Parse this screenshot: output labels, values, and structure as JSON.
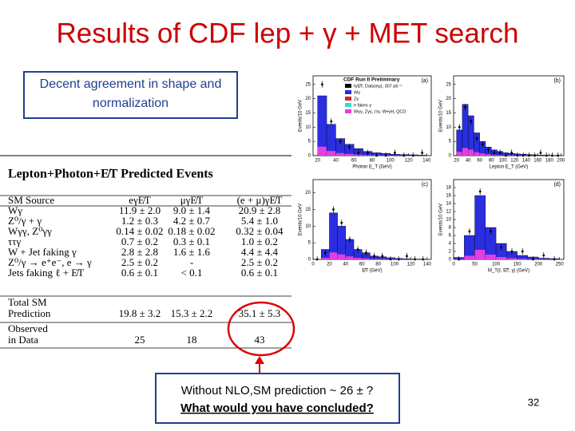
{
  "title": "Results of CDF lep + γ + MET search",
  "note": "Decent agreement in shape and normalization",
  "table": {
    "title": "Lepton+Photon+E̸T Predicted Events",
    "header": [
      "SM Source",
      "eγE̸T",
      "μγE̸T",
      "(e + μ)γE̸T"
    ],
    "rows": [
      {
        "source": [
          "Wγ"
        ],
        "values": [
          "11.9 ± 2.0",
          "9.0 ± 1.4",
          "20.9 ± 2.8"
        ]
      },
      {
        "source": [
          "Z⁰/γ + γ"
        ],
        "values": [
          "1.2 ± 0.3",
          "4.2 ± 0.7",
          "5.4 ± 1.0"
        ]
      },
      {
        "source": [
          "Wγγ, Z⁰γγ"
        ],
        "values": [
          "0.14 ± 0.02",
          "0.18 ± 0.02",
          "0.32 ± 0.04"
        ]
      },
      {
        "source": [
          "ττγ"
        ],
        "values": [
          "0.7 ± 0.2",
          "0.3 ± 0.1",
          "1.0 ± 0.2"
        ]
      },
      {
        "source": [
          "W + Jet faking γ"
        ],
        "values": [
          "2.8 ± 2.8",
          "1.6 ± 1.6",
          "4.4 ± 4.4"
        ]
      },
      {
        "source": [
          "Z⁰/γ → e⁺e⁻, e → γ"
        ],
        "values": [
          "2.5 ± 0.2",
          "-",
          "2.5 ± 0.2"
        ]
      },
      {
        "source": [
          "Jets faking ℓ + E̸T"
        ],
        "values": [
          "0.6 ± 0.1",
          "< 0.1",
          "0.6 ± 0.1"
        ]
      },
      {
        "source": [
          "Total SM",
          "Prediction"
        ],
        "values": [
          "19.8 ± 3.2",
          "15.3 ± 2.2",
          "35.1 ± 5.3"
        ]
      },
      {
        "source": [
          "Observed",
          "in Data"
        ],
        "values": [
          25,
          18,
          43
        ]
      }
    ]
  },
  "legend": {
    "header": "CDF Run II Preliminary",
    "entries": [
      "ℓγE̸T, Data(eμ), 307 pb⁻¹",
      "Wγ",
      "Zγ",
      "e fakes γ",
      "Wγγ, Zγγ, ττγ, W+jet, QCD"
    ]
  },
  "plots": [
    {
      "panel": "(a)",
      "xlabel": "Photon E_T (GeV)",
      "ylabel": "Events/10 GeV",
      "xlim": [
        15,
        145
      ],
      "xticks": [
        20,
        40,
        60,
        80,
        100,
        120,
        140
      ],
      "ylim": [
        0,
        28
      ],
      "yticks": [
        0,
        5,
        10,
        15,
        20,
        25
      ],
      "bins": [
        20,
        30,
        40,
        50,
        60,
        70,
        80,
        90,
        100,
        110,
        120,
        130,
        140
      ],
      "prediction": [
        21,
        11,
        6,
        4,
        2.5,
        1.5,
        1,
        0.8,
        0.5,
        0.4,
        0.3,
        0.2
      ],
      "data": [
        25,
        12,
        5,
        3,
        1,
        1,
        0,
        0,
        1,
        0,
        0,
        1
      ]
    },
    {
      "panel": "(b)",
      "xlabel": "Lepton E_T (GeV)",
      "ylabel": "Events/10 GeV",
      "xlim": [
        15,
        205
      ],
      "xticks": [
        20,
        40,
        60,
        80,
        100,
        120,
        140,
        160,
        180,
        200
      ],
      "ylim": [
        0,
        28
      ],
      "yticks": [
        0,
        5,
        10,
        15,
        20,
        25
      ],
      "bins": [
        20,
        30,
        40,
        50,
        60,
        70,
        80,
        90,
        100,
        110,
        120,
        130,
        140,
        150,
        160,
        170,
        180,
        190,
        200
      ],
      "prediction": [
        9,
        18,
        14,
        8,
        5,
        3,
        2,
        1.5,
        1,
        0.8,
        0.6,
        0.5,
        0.4,
        0.3,
        0.2,
        0.2,
        0.1,
        0.1
      ],
      "data": [
        10,
        17,
        12,
        6,
        4,
        2,
        1,
        1,
        0,
        1,
        0,
        0,
        0,
        0,
        1,
        0,
        0,
        0
      ]
    },
    {
      "panel": "(c)",
      "xlabel": "E̸T (GeV)",
      "ylabel": "Events/10 GeV",
      "xlim": [
        0,
        145
      ],
      "xticks": [
        0,
        20,
        40,
        60,
        80,
        100,
        120,
        140
      ],
      "ylim": [
        0,
        24
      ],
      "yticks": [
        0,
        5,
        10,
        15,
        20
      ],
      "bins": [
        0,
        10,
        20,
        30,
        40,
        50,
        60,
        70,
        80,
        90,
        100,
        110,
        120,
        130,
        140
      ],
      "prediction": [
        0,
        3,
        14,
        10,
        6,
        3,
        2,
        1,
        0.8,
        0.5,
        0.3,
        0.2,
        0.1,
        0.1
      ],
      "data": [
        0,
        2,
        15,
        11,
        6,
        3,
        2,
        1,
        1,
        0,
        0,
        1,
        0,
        0
      ]
    },
    {
      "panel": "(d)",
      "xlabel": "M_T(ℓ, E̸T, γ) (GeV)",
      "ylabel": "Events/10 GeV",
      "xlim": [
        0,
        260
      ],
      "xticks": [
        0,
        50,
        100,
        150,
        200,
        250
      ],
      "ylim": [
        0,
        20
      ],
      "yticks": [
        0,
        2,
        4,
        6,
        8,
        10,
        12,
        14,
        16,
        18
      ],
      "bins": [
        0,
        25,
        50,
        75,
        100,
        125,
        150,
        175,
        200,
        225,
        250
      ],
      "prediction": [
        0.5,
        6,
        16,
        8,
        4,
        2,
        1,
        0.6,
        0.3,
        0.2
      ],
      "data": [
        0,
        7,
        17,
        7,
        3,
        2,
        2,
        0,
        1,
        0
      ]
    }
  ],
  "callout": {
    "line1": "Without NLO,SM prediction ~ 26 ± ?",
    "line2": "What would you have concluded?"
  },
  "page_number": "32"
}
